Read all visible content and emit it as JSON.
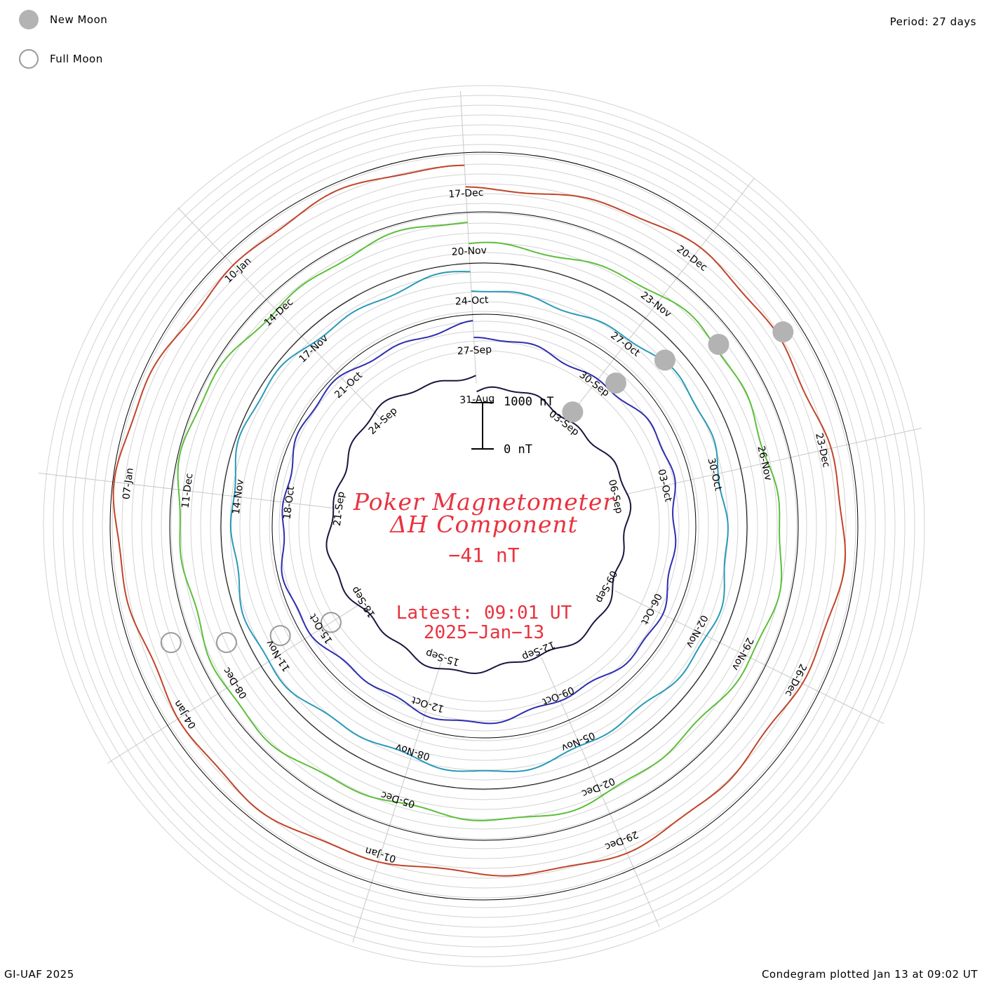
{
  "legend": {
    "new_moon_label": "New Moon",
    "full_moon_label": "Full Moon"
  },
  "header": {
    "period": "Period: 27 days"
  },
  "footer": {
    "credit": "GI-UAF 2025",
    "plotted": "Condegram plotted Jan 13 at 09:02 UT"
  },
  "center": {
    "title_line1": "Poker Magnetometer",
    "title_line2": "ΔH Component",
    "current_value": "−41 nT",
    "latest_line1": "Latest: 09:01 UT",
    "latest_line2": "2025−Jan−13"
  },
  "scale_bar": {
    "top_label": "1000 nT",
    "bottom_label": "0 nT",
    "value_nT": 1000
  },
  "chart_data": {
    "type": "line",
    "subtype": "spiral condegram",
    "period_days": 27,
    "legend_placement": "top-left",
    "grid": true,
    "rotations": [
      {
        "index": 0,
        "color": "#1c1440",
        "labels": [
          "31-Aug",
          "03-Sep",
          "06-Sep",
          "09-Sep",
          "12-Sep",
          "15-Sep",
          "18-Sep",
          "21-Sep",
          "24-Sep"
        ]
      },
      {
        "index": 1,
        "color": "#2e2eb0",
        "labels": [
          "27-Sep",
          "30-Sep",
          "03-Oct",
          "06-Oct",
          "09-Oct",
          "12-Oct",
          "15-Oct",
          "18-Oct",
          "21-Oct"
        ]
      },
      {
        "index": 2,
        "color": "#2a9ab8",
        "labels": [
          "24-Oct",
          "27-Oct",
          "30-Oct",
          "02-Nov",
          "05-Nov",
          "08-Nov",
          "11-Nov",
          "14-Nov",
          "17-Nov"
        ]
      },
      {
        "index": 3,
        "color": "#5cbf3a",
        "labels": [
          "20-Nov",
          "23-Nov",
          "26-Nov",
          "29-Nov",
          "02-Dec",
          "05-Dec",
          "08-Dec",
          "11-Dec",
          "14-Dec"
        ]
      },
      {
        "index": 4,
        "color": "#c2442a",
        "labels": [
          "17-Dec",
          "20-Dec",
          "23-Dec",
          "26-Dec",
          "29-Dec",
          "01-Jan",
          "04-Jan",
          "07-Jan",
          "10-Jan"
        ]
      }
    ],
    "new_moons": [
      "03-Sep",
      "02-Oct",
      "01-Nov",
      "01-Dec",
      "30-Dec"
    ],
    "full_moons": [
      "18-Sep",
      "17-Oct",
      "15-Nov",
      "15-Dec"
    ],
    "series_samples": [
      {
        "date": "31-Aug",
        "delta_H_nT": 90
      },
      {
        "date": "03-Sep",
        "delta_H_nT": 120
      },
      {
        "date": "12-Sep",
        "delta_H_nT": 350
      },
      {
        "date": "16-Sep",
        "delta_H_nT": 900
      },
      {
        "date": "24-Sep",
        "delta_H_nT": 150
      },
      {
        "date": "07-Oct",
        "delta_H_nT": 300
      },
      {
        "date": "11-Oct",
        "delta_H_nT": 1700
      },
      {
        "date": "17-Oct",
        "delta_H_nT": 400
      },
      {
        "date": "24-Oct",
        "delta_H_nT": 120
      },
      {
        "date": "08-Nov",
        "delta_H_nT": 250
      },
      {
        "date": "24-Nov",
        "delta_H_nT": 200
      },
      {
        "date": "01-Jan",
        "delta_H_nT": 900
      },
      {
        "date": "13-Jan",
        "delta_H_nT": -41
      }
    ]
  }
}
